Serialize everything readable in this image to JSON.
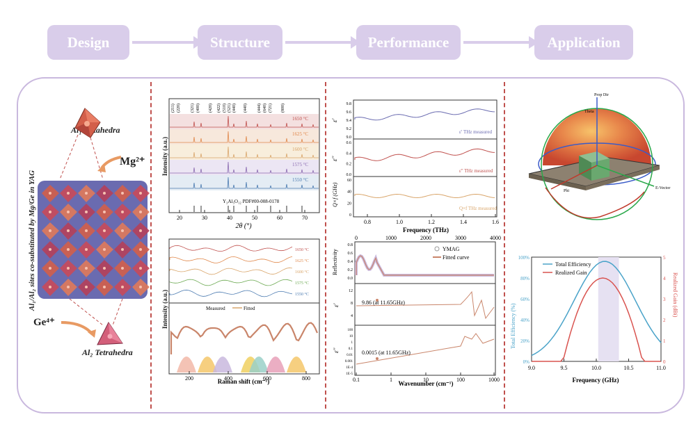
{
  "flow": {
    "steps": [
      "Design",
      "Structure",
      "Performance",
      "Application"
    ]
  },
  "design": {
    "vertical_title": "Al₁/Al₂ sites co-substituted by Mg/Ge in YAG",
    "octahedra_label": "Al₁ Octahedra",
    "tetrahedra_label": "Al₂ Tetrahedra",
    "mg_label": "Mg²⁺",
    "ge_label": "Ge⁴⁺"
  },
  "xrd": {
    "ylabel": "Intensity (a.u.)",
    "xlabel": "2θ (°)",
    "xticks": [
      "20",
      "30",
      "40",
      "50",
      "60",
      "70"
    ],
    "temps": [
      "1650 °C",
      "1625 °C",
      "1600 °C",
      "1575 °C",
      "1550 °C"
    ],
    "peaks": [
      "(211)",
      "(220)",
      "(321)",
      "(400)",
      "(420)",
      "(422)",
      "(510)",
      "(521)",
      "(440)",
      "(440)",
      "(444)",
      "(640)",
      "(721)",
      "(800)"
    ],
    "ref": "Y₃Al₅O₁₂  PDF#00-008-0178"
  },
  "raman": {
    "ylabel": "Intensity (a.u.)",
    "xlabel": "Raman shift (cm⁻¹)",
    "xticks": [
      "200",
      "400",
      "600",
      "800"
    ],
    "temps": [
      "1650 °C",
      "1625 °C",
      "1600 °C",
      "1575 °C",
      "1550 °C"
    ],
    "legend_measured": "Measured",
    "legend_fitted": "Fitted"
  },
  "thz": {
    "xlabel": "Frequency (THz)",
    "xticks": [
      "0.8",
      "1.0",
      "1.2",
      "1.4",
      "1.6"
    ],
    "top": {
      "ylabel": "ε'",
      "yticks": [
        "9.8",
        "9.6",
        "9.4",
        "9.2",
        "9.0"
      ],
      "legend": "ε' THz measured"
    },
    "mid": {
      "ylabel": "ε''",
      "yticks": [
        "0.6",
        "0.4",
        "0.2",
        "0.0"
      ],
      "legend": "ε'' THz measured"
    },
    "bot": {
      "ylabel": "Q×f (GHz)",
      "yticks": [
        "60",
        "40",
        "20",
        "0"
      ],
      "legend": "Q×f THz measured"
    }
  },
  "ir": {
    "top_ticks": [
      "0",
      "1000",
      "2000",
      "3000",
      "4000"
    ],
    "xlabel": "Wavenumber (cm⁻¹)",
    "xticks": [
      "0.1",
      "1",
      "10",
      "100",
      "1000"
    ],
    "refl_label": "Reflectivity",
    "refl_ticks": [
      "0.8",
      "0.6",
      "0.4",
      "0.2",
      "0.0"
    ],
    "legend_ymag": "YMAG",
    "legend_fit": "Fitted curve",
    "eps_label": "ε'",
    "eps_ticks": [
      "12",
      "8",
      "4"
    ],
    "eps_annot": "9.86 (at 11.65GHz)",
    "loss_label": "ε''",
    "loss_ticks": [
      "100",
      "10",
      "1",
      "0.1",
      "0.01",
      "0.001",
      "1E-4",
      "1E-5"
    ],
    "loss_annot": "0.0015 (at 11.65GHz)"
  },
  "antenna": {
    "labels": [
      "Phi",
      "Theta",
      "Prop Dir",
      "E-Vector"
    ]
  },
  "efficiency": {
    "legend_eff": "Total Efficiency",
    "legend_gain": "Realized Gain",
    "ylabel_left": "Total Efficiency (%)",
    "ylabel_right": "Realized Gain (dBi)",
    "xlabel": "Frequency (GHz)",
    "xticks": [
      "9.0",
      "9.5",
      "10.0",
      "10.5",
      "11.0"
    ],
    "yticks_left": [
      "100%",
      "80%",
      "60%",
      "40%",
      "20%",
      "0%"
    ],
    "yticks_right": [
      "5",
      "4",
      "3",
      "2",
      "1",
      "0"
    ],
    "eff_color": "#4aa3c9",
    "gain_color": "#d9534f"
  }
}
